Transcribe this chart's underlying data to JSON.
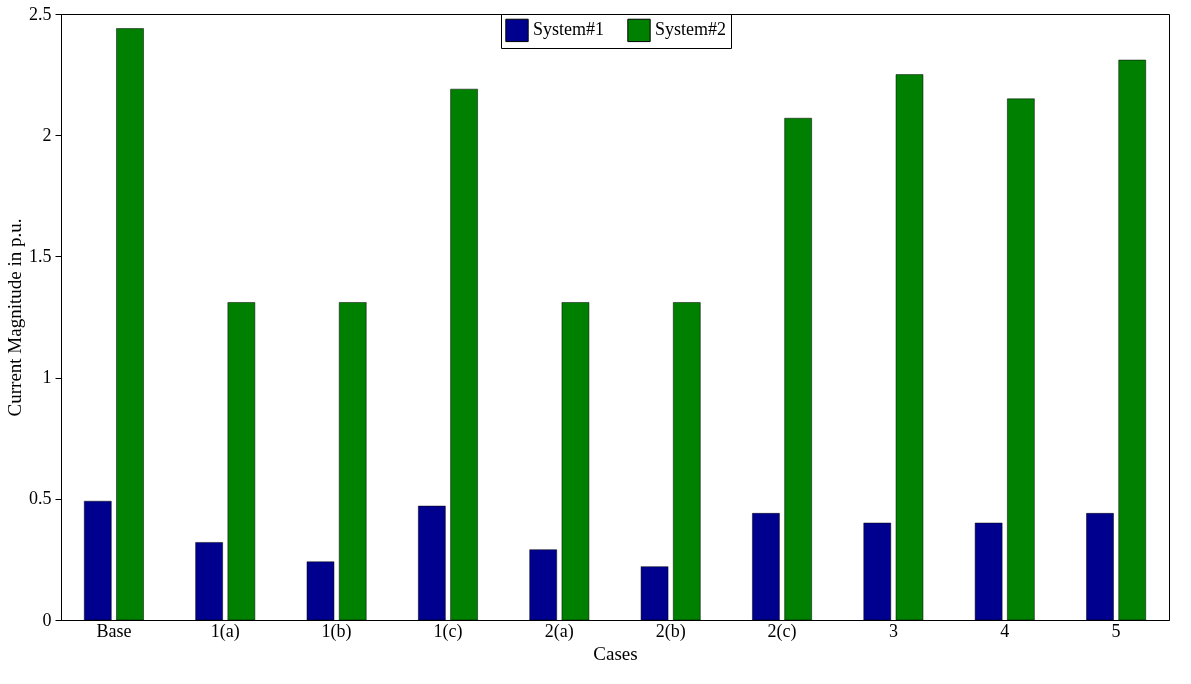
{
  "chart_data": {
    "type": "bar",
    "xlabel": "Cases",
    "ylabel": "Current Magnitude in p.u.",
    "categories": [
      "Base",
      "1(a)",
      "1(b)",
      "1(c)",
      "2(a)",
      "2(b)",
      "2(c)",
      "3",
      "4",
      "5"
    ],
    "series": [
      {
        "name": "System#1",
        "color": "#00008f",
        "values": [
          0.49,
          0.32,
          0.24,
          0.47,
          0.29,
          0.22,
          0.44,
          0.4,
          0.4,
          0.44
        ]
      },
      {
        "name": "System#2",
        "color": "#008000",
        "values": [
          2.44,
          1.31,
          1.31,
          2.19,
          1.31,
          1.31,
          2.07,
          2.25,
          2.15,
          2.31
        ]
      }
    ],
    "ylim": [
      0,
      2.5
    ],
    "yticks": [
      0,
      0.5,
      1,
      1.5,
      2,
      2.5
    ],
    "grid": false,
    "legend": "top"
  }
}
